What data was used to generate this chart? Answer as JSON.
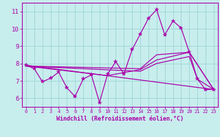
{
  "xlabel": "Windchill (Refroidissement éolien,°C)",
  "xlim": [
    -0.5,
    23.5
  ],
  "ylim": [
    5.5,
    11.5
  ],
  "yticks": [
    6,
    7,
    8,
    9,
    10,
    11
  ],
  "xticks": [
    0,
    1,
    2,
    3,
    4,
    5,
    6,
    7,
    8,
    9,
    10,
    11,
    12,
    13,
    14,
    15,
    16,
    17,
    18,
    19,
    20,
    21,
    22,
    23
  ],
  "bg_color": "#c8eded",
  "grid_color": "#a0d8d8",
  "line_color": "#aa00aa",
  "font_color": "#aa00aa",
  "main_series": {
    "x": [
      0,
      1,
      2,
      3,
      4,
      5,
      6,
      7,
      8,
      9,
      10,
      11,
      12,
      13,
      14,
      15,
      16,
      17,
      18,
      19,
      20,
      21,
      22,
      23
    ],
    "y": [
      7.9,
      7.7,
      6.95,
      7.15,
      7.5,
      6.6,
      6.1,
      7.1,
      7.35,
      5.75,
      7.4,
      8.1,
      7.4,
      8.8,
      9.7,
      10.6,
      11.1,
      9.65,
      10.45,
      10.05,
      8.65,
      7.1,
      6.5,
      6.5
    ]
  },
  "trend_lines": [
    {
      "x": [
        0,
        23
      ],
      "y": [
        7.9,
        6.5
      ]
    },
    {
      "x": [
        0,
        14,
        16,
        20,
        21,
        23
      ],
      "y": [
        7.85,
        7.55,
        8.0,
        8.4,
        7.1,
        6.5
      ]
    },
    {
      "x": [
        0,
        10,
        14,
        16,
        20,
        23
      ],
      "y": [
        7.85,
        7.3,
        7.65,
        8.2,
        8.65,
        6.5
      ]
    },
    {
      "x": [
        0,
        14,
        16,
        20,
        23
      ],
      "y": [
        7.85,
        7.7,
        8.5,
        8.65,
        6.5
      ]
    }
  ]
}
